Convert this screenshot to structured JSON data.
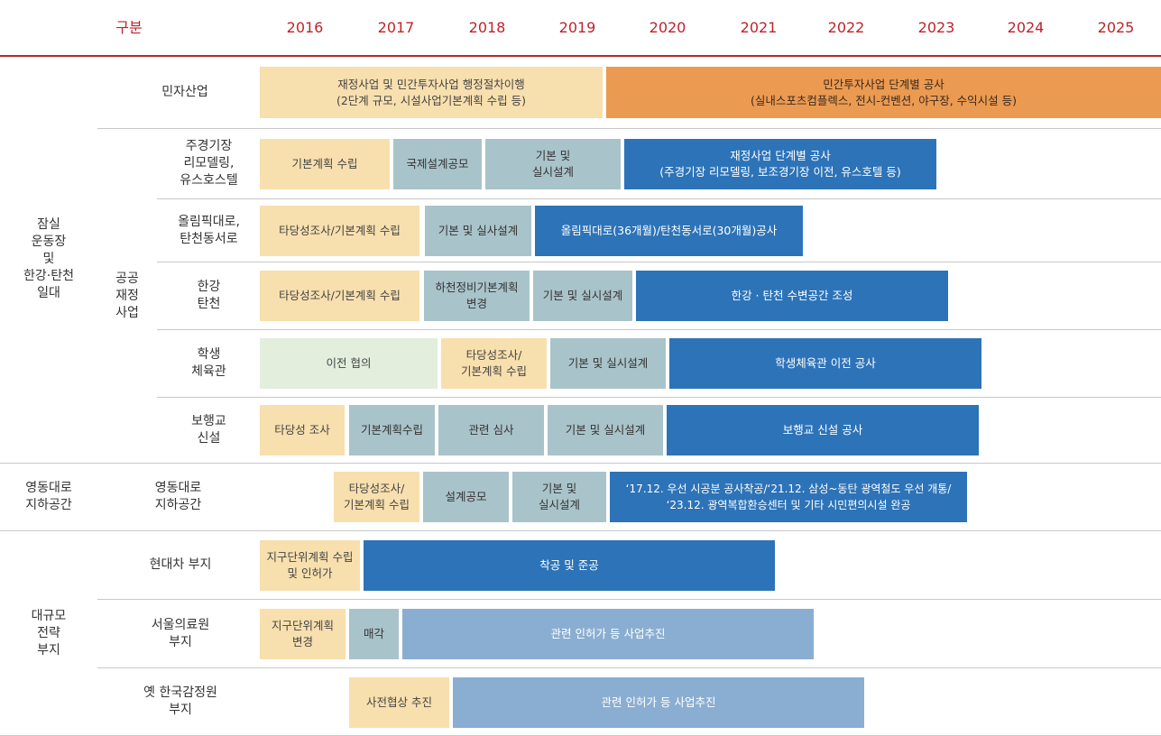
{
  "header": {
    "category_label": "구분",
    "years": [
      "2016",
      "2017",
      "2018",
      "2019",
      "2020",
      "2021",
      "2022",
      "2023",
      "2024",
      "2025"
    ]
  },
  "groups": [
    {
      "label": "잠실\n운동장\n및\n한강·탄천\n일대"
    },
    {
      "label": "영동대로\n지하공간"
    },
    {
      "label": "대규모\n전략\n부지"
    }
  ],
  "subgroups": [
    {
      "label": "공공\n재정\n사업"
    }
  ],
  "rows": [
    {
      "label": "민자산업",
      "bars": [
        {
          "text": "재정사업 및 민간투자사업 행정절차이행\n(2단계 규모, 시설사업기본계획 수립 등)",
          "type": "plan"
        },
        {
          "text": "민간투자사업 단계별 공사\n(실내스포츠컴플렉스, 전시-컨벤션, 야구장, 수익시설 등)",
          "type": "orange"
        }
      ]
    },
    {
      "label": "주경기장\n리모델링,\n유스호스텔",
      "bars": [
        {
          "text": "기본계획 수립",
          "type": "plan"
        },
        {
          "text": "국제설계공모",
          "type": "design"
        },
        {
          "text": "기본 및\n실시설계",
          "type": "design"
        },
        {
          "text": "재정사업 단계별 공사\n(주경기장 리모델링, 보조경기장 이전, 유스호텔 등)",
          "type": "build"
        }
      ]
    },
    {
      "label": "올림픽대로,\n탄천동서로",
      "bars": [
        {
          "text": "타당성조사/기본계획 수립",
          "type": "plan"
        },
        {
          "text": "기본 및 실사설계",
          "type": "design"
        },
        {
          "text": "올림픽대로(36개월)/탄천동서로(30개월)공사",
          "type": "build"
        }
      ]
    },
    {
      "label": "한강\n탄천",
      "bars": [
        {
          "text": "타당성조사/기본계획 수립",
          "type": "plan"
        },
        {
          "text": "하천정비기본계획\n변경",
          "type": "design"
        },
        {
          "text": "기본 및 실시설계",
          "type": "design"
        },
        {
          "text": "한강 · 탄천 수변공간 조성",
          "type": "build"
        }
      ]
    },
    {
      "label": "학생\n체육관",
      "bars": [
        {
          "text": "이전 협의",
          "type": "consult"
        },
        {
          "text": "타당성조사/\n기본계획 수립",
          "type": "plan"
        },
        {
          "text": "기본 및 실시설계",
          "type": "design"
        },
        {
          "text": "학생체육관 이전 공사",
          "type": "build"
        }
      ]
    },
    {
      "label": "보행교\n신설",
      "bars": [
        {
          "text": "타당성 조사",
          "type": "plan"
        },
        {
          "text": "기본계획수립",
          "type": "design"
        },
        {
          "text": "관련 심사",
          "type": "design"
        },
        {
          "text": "기본 및 실시설계",
          "type": "design"
        },
        {
          "text": "보행교 신설 공사",
          "type": "build"
        }
      ]
    },
    {
      "label": "영동대로\n지하공간",
      "bars": [
        {
          "text": "타당성조사/\n기본계획 수립",
          "type": "plan"
        },
        {
          "text": "설계공모",
          "type": "design"
        },
        {
          "text": "기본 및\n실시설계",
          "type": "design"
        },
        {
          "text": "‘17.12. 우선 시공분 공사착공/‘21.12. 삼성~동탄 광역철도 우선 개통/\n‘23.12. 광역복합환승센터 및 기타 시민편의시설 완공",
          "type": "build"
        }
      ]
    },
    {
      "label": "현대차 부지",
      "bars": [
        {
          "text": "지구단위계획 수립\n및 인허가",
          "type": "plan"
        },
        {
          "text": "착공 및 준공",
          "type": "build"
        }
      ]
    },
    {
      "label": "서울의료원\n부지",
      "bars": [
        {
          "text": "지구단위계획\n변경",
          "type": "plan"
        },
        {
          "text": "매각",
          "type": "design"
        },
        {
          "text": "관련 인허가 등 사업추진",
          "type": "light"
        }
      ]
    },
    {
      "label": "옛 한국감정원\n부지",
      "bars": [
        {
          "text": "사전협상 추진",
          "type": "plan"
        },
        {
          "text": "관련 인허가 등 사업추진",
          "type": "light"
        }
      ]
    }
  ],
  "colors": {
    "header_text": "#c0222a",
    "plan": "#f8dfae",
    "design": "#a9c3ca",
    "consult": "#e3eedd",
    "build": "#2d73b8",
    "orange": "#eb9a52",
    "light": "#8aaed2"
  }
}
